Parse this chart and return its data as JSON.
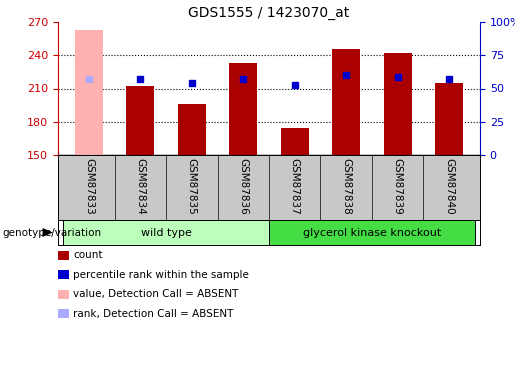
{
  "title": "GDS1555 / 1423070_at",
  "samples": [
    "GSM87833",
    "GSM87834",
    "GSM87835",
    "GSM87836",
    "GSM87837",
    "GSM87838",
    "GSM87839",
    "GSM87840"
  ],
  "count_values": [
    263,
    212,
    196,
    233,
    174,
    246,
    242,
    215
  ],
  "rank_values": [
    57,
    57,
    54,
    57,
    53,
    60,
    59,
    57
  ],
  "absent_flags": [
    true,
    false,
    false,
    false,
    false,
    false,
    false,
    false
  ],
  "baseline": 150,
  "ylim_left": [
    150,
    270
  ],
  "ylim_right": [
    0,
    100
  ],
  "yticks_left": [
    150,
    180,
    210,
    240,
    270
  ],
  "yticks_right": [
    0,
    25,
    50,
    75,
    100
  ],
  "yticklabels_right": [
    "0",
    "25",
    "50",
    "75",
    "100%"
  ],
  "bar_color": "#AA0000",
  "absent_bar_color": "#FFB0B0",
  "rank_color": "#0000CC",
  "absent_rank_color": "#AAAAFF",
  "bar_width": 0.55,
  "groups": [
    {
      "label": "wild type",
      "start": 0,
      "end": 3,
      "color": "#BBFFBB"
    },
    {
      "label": "glycerol kinase knockout",
      "start": 4,
      "end": 7,
      "color": "#44DD44"
    }
  ],
  "group_label_prefix": "genotype/variation",
  "legend_items": [
    {
      "label": "count",
      "color": "#AA0000"
    },
    {
      "label": "percentile rank within the sample",
      "color": "#0000CC"
    },
    {
      "label": "value, Detection Call = ABSENT",
      "color": "#FFB0B0"
    },
    {
      "label": "rank, Detection Call = ABSENT",
      "color": "#AAAAFF"
    }
  ],
  "tick_color_left": "#CC0000",
  "tick_color_right": "#0000CC",
  "label_bg": "#C8C8C8",
  "grid_ticks": [
    180,
    210,
    240
  ]
}
